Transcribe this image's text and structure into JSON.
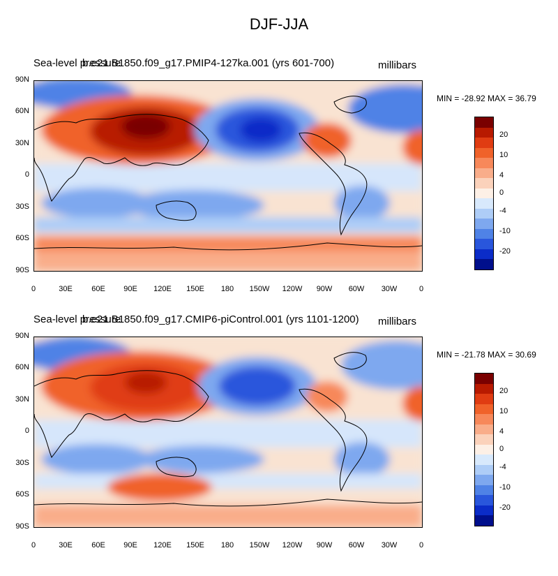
{
  "title": "DJF-JJA",
  "colorbar": {
    "colors": [
      "#7a0000",
      "#b81a00",
      "#e03c12",
      "#f0622a",
      "#f7885a",
      "#f9ad8a",
      "#fbd2bb",
      "#fdf0e6",
      "#d8e9fc",
      "#aecdf7",
      "#7ea8ef",
      "#4f82e6",
      "#2956dc",
      "#0b2cc8",
      "#000f8c"
    ],
    "labels": [
      "20",
      "10",
      "4",
      "0",
      "-4",
      "-10",
      "-20"
    ]
  },
  "axes": {
    "y_labels": [
      "90N",
      "60N",
      "30N",
      "0",
      "30S",
      "60S",
      "90S"
    ],
    "x_labels": [
      "0",
      "30E",
      "60E",
      "90E",
      "120E",
      "150E",
      "180",
      "150W",
      "120W",
      "90W",
      "60W",
      "30W",
      "0"
    ]
  },
  "panels": [
    {
      "variable_label": "Sea-level pressure",
      "run_label": "b.e21.B1850.f09_g17.PMIP4-127ka.001 (yrs 601-700)",
      "units_label": "millibars",
      "minmax_label": "MIN = -28.92 MAX =  36.79"
    },
    {
      "variable_label": "Sea-level pressure",
      "run_label": "b.e21.B1850.f09_g17.CMIP6-piControl.001 (yrs 1101-1200)",
      "units_label": "millibars",
      "minmax_label": "MIN = -21.78 MAX =  30.69"
    }
  ]
}
